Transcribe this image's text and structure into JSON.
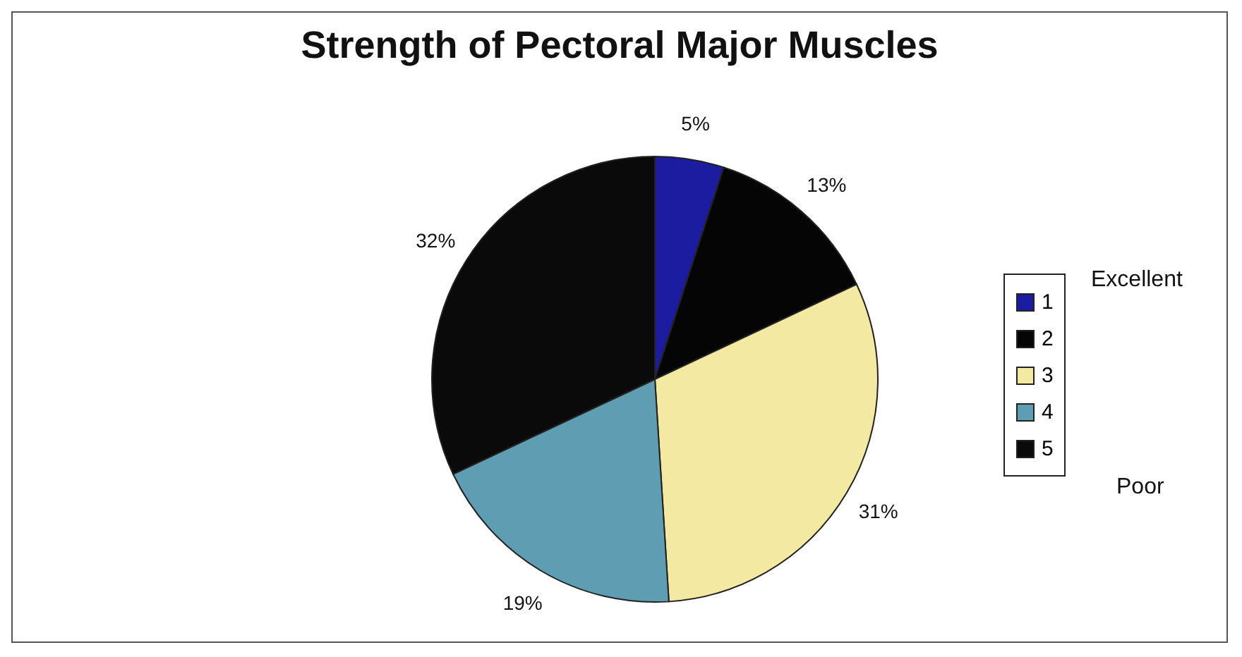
{
  "chart_data": {
    "type": "pie",
    "title": "Strength of Pectoral Major Muscles",
    "categories": [
      "1",
      "2",
      "3",
      "4",
      "5"
    ],
    "values": [
      5,
      13,
      31,
      19,
      32
    ],
    "colors": [
      "#1c1ca0",
      "#050505",
      "#f3e9a2",
      "#5f9db2",
      "#0a0a0a"
    ],
    "value_labels": [
      "5%",
      "13%",
      "31%",
      "19%",
      "32%"
    ],
    "legend": "right",
    "annotations": [
      "Excellent",
      "Poor"
    ]
  }
}
